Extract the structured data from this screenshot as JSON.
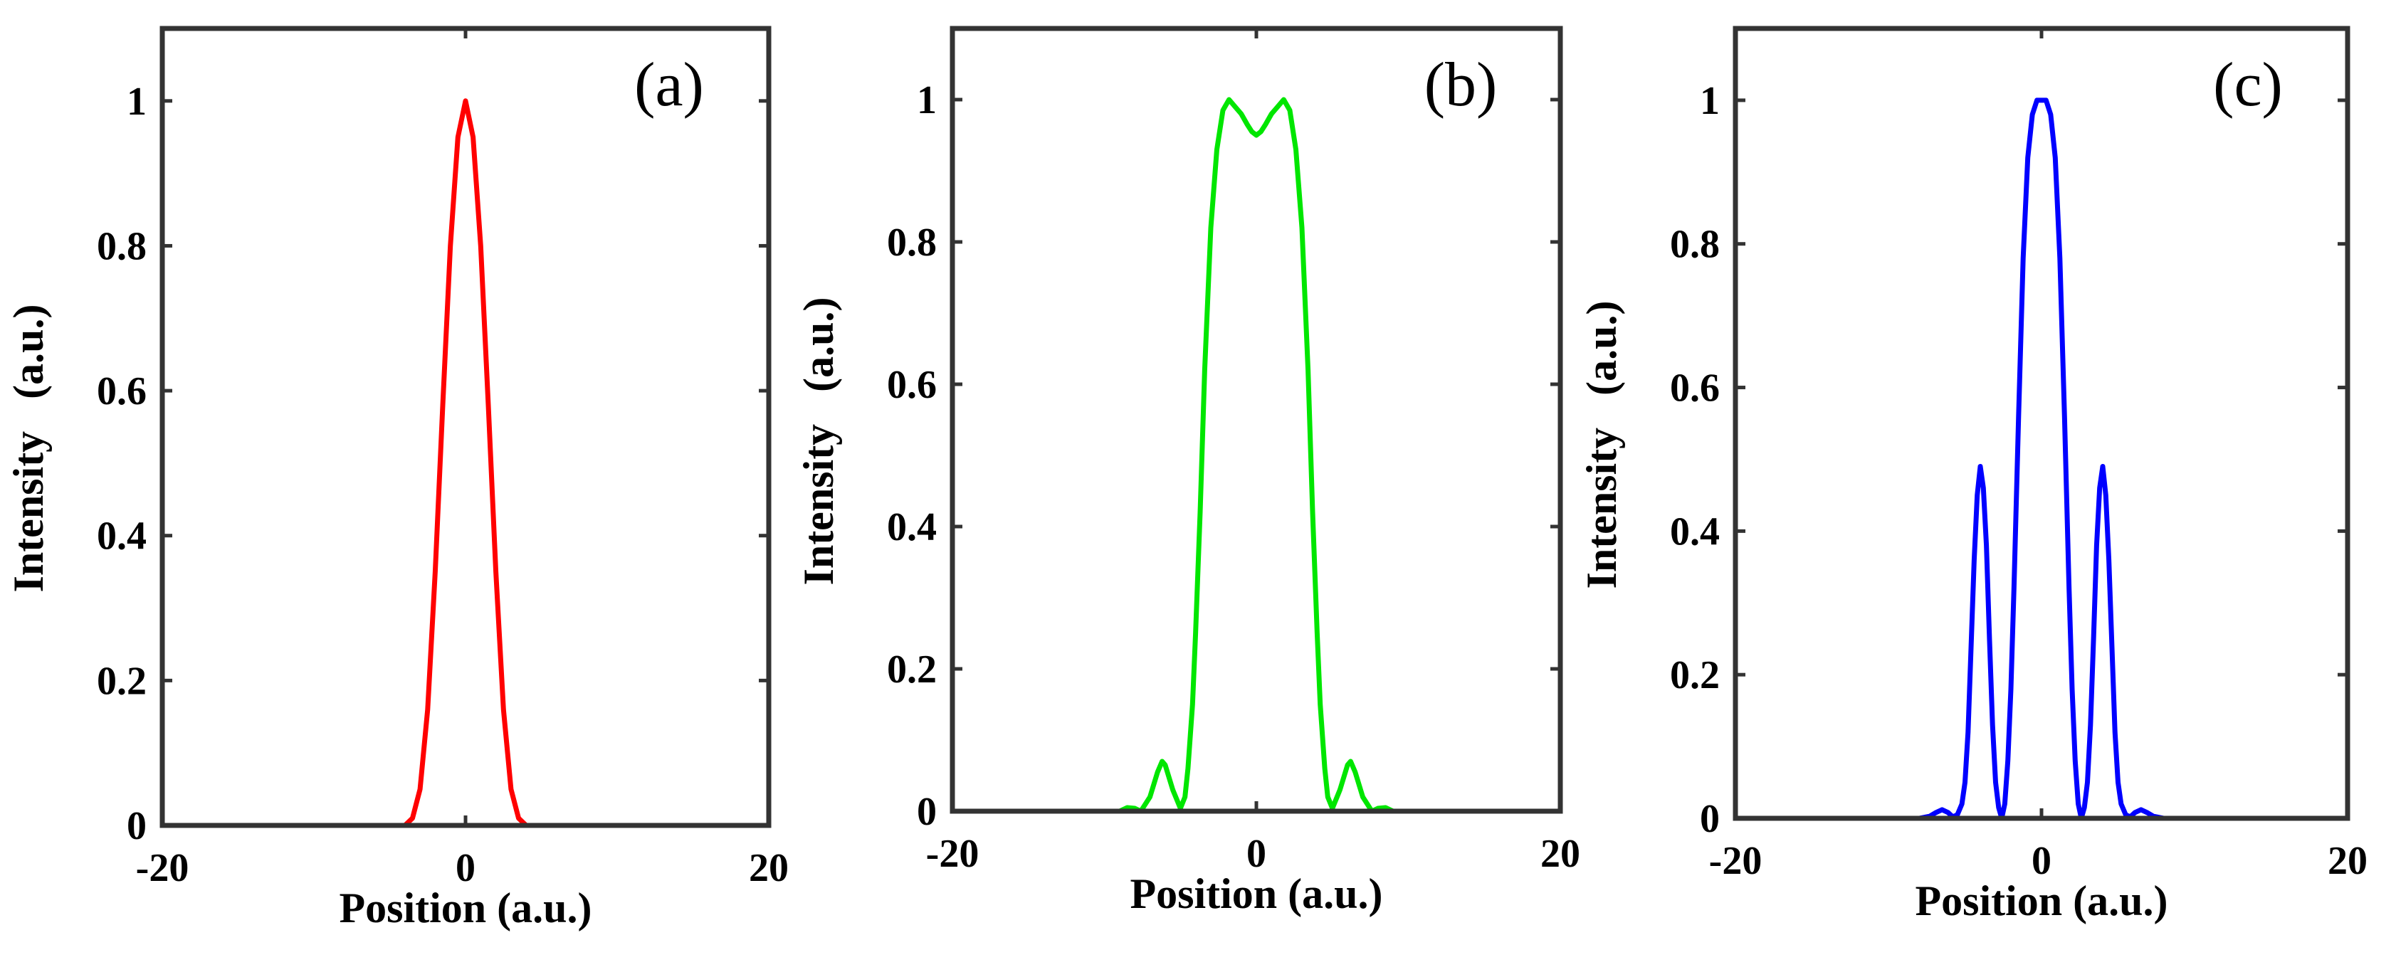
{
  "chart_data": [
    {
      "type": "line",
      "panel_label": "(a)",
      "xlabel": "Position (a.u.)",
      "ylabel": "Intensity   (a.u.)",
      "xlim": [
        -20,
        20
      ],
      "ylim": [
        0,
        1.1
      ],
      "x_ticks": [
        -20,
        0,
        20
      ],
      "x_tick_labels": [
        "-20",
        "0",
        "20"
      ],
      "y_ticks": [
        0,
        0.2,
        0.4,
        0.6,
        0.8,
        1
      ],
      "y_tick_labels": [
        "0",
        "0.2",
        "0.4",
        "0.6",
        "0.8",
        "1"
      ],
      "series": [
        {
          "name": "intensity",
          "color": "#ff0000",
          "x": [
            -20,
            -8,
            -4,
            -3.5,
            -3,
            -2.5,
            -2,
            -1.5,
            -1,
            -0.5,
            0,
            0.5,
            1,
            1.5,
            2,
            2.5,
            3,
            3.5,
            4,
            8,
            20
          ],
          "values": [
            0,
            0,
            0,
            0.01,
            0.05,
            0.16,
            0.35,
            0.58,
            0.8,
            0.95,
            1.0,
            0.95,
            0.8,
            0.58,
            0.35,
            0.16,
            0.05,
            0.01,
            0,
            0,
            0
          ]
        }
      ]
    },
    {
      "type": "line",
      "panel_label": "(b)",
      "xlabel": "Position (a.u.)",
      "ylabel": "Intensity   (a.u.)",
      "xlim": [
        -20,
        20
      ],
      "ylim": [
        0,
        1.1
      ],
      "x_ticks": [
        -20,
        0,
        20
      ],
      "x_tick_labels": [
        "-20",
        "0",
        "20"
      ],
      "y_ticks": [
        0,
        0.2,
        0.4,
        0.6,
        0.8,
        1
      ],
      "y_tick_labels": [
        "0",
        "0.2",
        "0.4",
        "0.6",
        "0.8",
        "1"
      ],
      "series": [
        {
          "name": "intensity",
          "color": "#00e600",
          "x": [
            -20,
            -10,
            -9,
            -8.8,
            -8.5,
            -8,
            -7.6,
            -7,
            -6.5,
            -6.2,
            -6,
            -5.5,
            -5,
            -4.7,
            -4.5,
            -4.2,
            -4,
            -3.7,
            -3.4,
            -3,
            -2.6,
            -2.2,
            -1.8,
            -1.4,
            -1,
            -0.6,
            -0.3,
            0,
            0.3,
            0.6,
            1,
            1.4,
            1.8,
            2.2,
            2.6,
            3,
            3.4,
            3.7,
            4,
            4.2,
            4.5,
            4.7,
            5,
            5.5,
            6,
            6.2,
            6.5,
            7,
            7.6,
            8,
            8.5,
            8.8,
            9,
            10,
            20
          ],
          "values": [
            0,
            0,
            0,
            0.002,
            0.005,
            0.004,
            0.0,
            0.02,
            0.055,
            0.07,
            0.065,
            0.03,
            0.004,
            0.02,
            0.06,
            0.15,
            0.25,
            0.42,
            0.62,
            0.82,
            0.93,
            0.985,
            1.0,
            0.99,
            0.98,
            0.965,
            0.955,
            0.95,
            0.955,
            0.965,
            0.98,
            0.99,
            1.0,
            0.985,
            0.93,
            0.82,
            0.62,
            0.42,
            0.25,
            0.15,
            0.06,
            0.02,
            0.004,
            0.03,
            0.065,
            0.07,
            0.055,
            0.02,
            0.0,
            0.004,
            0.005,
            0.002,
            0,
            0,
            0
          ]
        }
      ]
    },
    {
      "type": "line",
      "panel_label": "(c)",
      "xlabel": "Position (a.u.)",
      "ylabel": "Intensity   (a.u.)",
      "xlim": [
        -20,
        20
      ],
      "ylim": [
        0,
        1.1
      ],
      "x_ticks": [
        -20,
        0,
        20
      ],
      "x_tick_labels": [
        "-20",
        "0",
        "20"
      ],
      "y_ticks": [
        0,
        0.2,
        0.4,
        0.6,
        0.8,
        1
      ],
      "y_tick_labels": [
        "0",
        "0.2",
        "0.4",
        "0.6",
        "0.8",
        "1"
      ],
      "series": [
        {
          "name": "intensity",
          "color": "#0000ff",
          "x": [
            -20,
            -9,
            -8,
            -7.3,
            -6.9,
            -6.5,
            -6.1,
            -5.8,
            -5.5,
            -5.2,
            -5,
            -4.8,
            -4.6,
            -4.4,
            -4.2,
            -4,
            -3.8,
            -3.6,
            -3.4,
            -3.2,
            -3,
            -2.8,
            -2.6,
            -2.4,
            -2.2,
            -2,
            -1.8,
            -1.5,
            -1.2,
            -0.9,
            -0.6,
            -0.3,
            0,
            0.3,
            0.6,
            0.9,
            1.2,
            1.5,
            1.8,
            2,
            2.2,
            2.4,
            2.6,
            2.8,
            3,
            3.2,
            3.4,
            3.6,
            3.8,
            4,
            4.2,
            4.4,
            4.6,
            4.8,
            5,
            5.2,
            5.5,
            5.8,
            6.1,
            6.5,
            6.9,
            7.3,
            8,
            9,
            20
          ],
          "values": [
            0,
            0,
            0,
            0.003,
            0.008,
            0.012,
            0.008,
            0.002,
            0.005,
            0.02,
            0.05,
            0.12,
            0.24,
            0.36,
            0.45,
            0.49,
            0.46,
            0.38,
            0.25,
            0.13,
            0.05,
            0.015,
            0.0,
            0.02,
            0.08,
            0.18,
            0.32,
            0.56,
            0.78,
            0.92,
            0.98,
            1.0,
            1.0,
            1.0,
            0.98,
            0.92,
            0.78,
            0.56,
            0.32,
            0.18,
            0.08,
            0.02,
            0.0,
            0.015,
            0.05,
            0.13,
            0.25,
            0.38,
            0.46,
            0.49,
            0.45,
            0.36,
            0.24,
            0.12,
            0.05,
            0.02,
            0.005,
            0.002,
            0.008,
            0.012,
            0.008,
            0.003,
            0,
            0,
            0
          ]
        }
      ]
    }
  ]
}
